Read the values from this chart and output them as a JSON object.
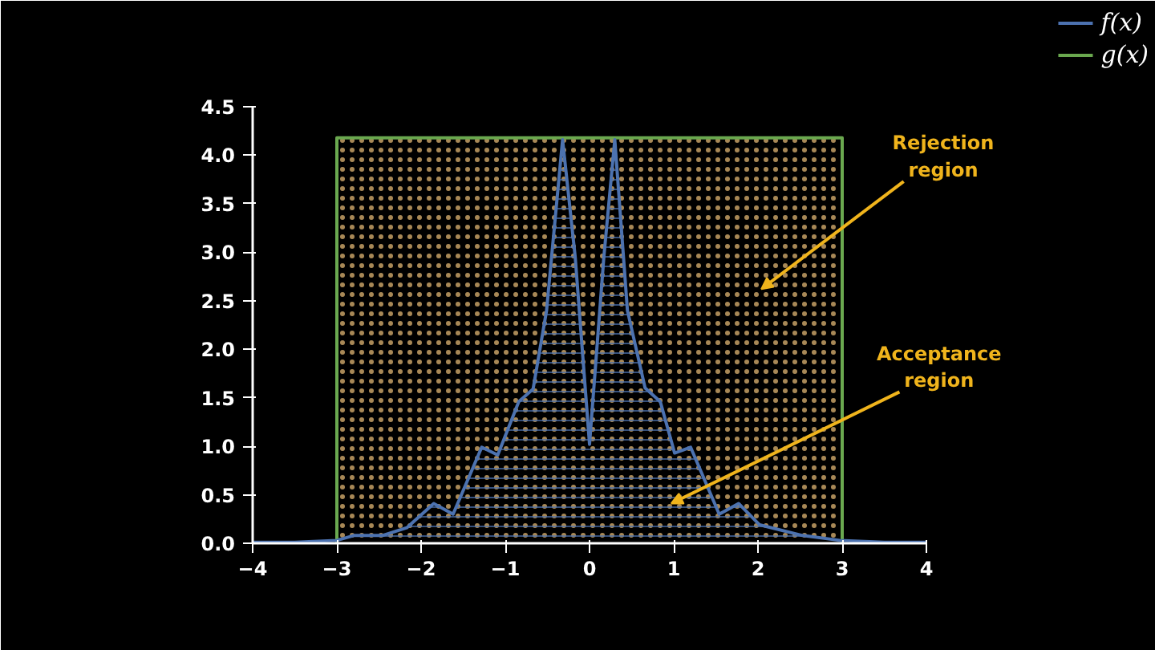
{
  "chart_data": {
    "type": "area",
    "xlim": [
      -4,
      4
    ],
    "ylim": [
      0,
      4.5
    ],
    "xticks": [
      {
        "value": -4,
        "label": "−4"
      },
      {
        "value": -3,
        "label": "−3"
      },
      {
        "value": -2,
        "label": "−2"
      },
      {
        "value": -1,
        "label": "−1"
      },
      0,
      1,
      2,
      3,
      4
    ],
    "yticks": [
      {
        "value": 0,
        "label": "0.0"
      },
      0.5,
      {
        "value": 1,
        "label": "1.0"
      },
      1.5,
      {
        "value": 2,
        "label": "2.0"
      },
      2.5,
      {
        "value": 3,
        "label": "3.0"
      },
      3.5,
      {
        "value": 4,
        "label": "4.0"
      },
      4.5
    ],
    "grid": false,
    "legend": "top right",
    "series": [
      {
        "name": "f(x)",
        "color": "#4c72b0",
        "x": [
          -4,
          -3.5,
          -3,
          -2.8,
          -2.46,
          -2.17,
          -1.85,
          -1.62,
          -1.28,
          -1.09,
          -0.84,
          -0.67,
          -0.51,
          -0.32,
          -0.17,
          0,
          0.17,
          0.3,
          0.45,
          0.66,
          0.84,
          1.01,
          1.2,
          1.54,
          1.77,
          2.02,
          2.53,
          2.97,
          3.5,
          4
        ],
        "values": [
          0.01,
          0.01,
          0.03,
          0.08,
          0.08,
          0.16,
          0.41,
          0.3,
          0.99,
          0.91,
          1.46,
          1.59,
          2.4,
          4.16,
          2.95,
          1.02,
          2.95,
          4.16,
          2.4,
          1.6,
          1.46,
          0.93,
          0.99,
          0.3,
          0.41,
          0.19,
          0.08,
          0.03,
          0.01,
          0.01
        ]
      },
      {
        "name": "g(x)",
        "color": "#6aa84f",
        "x": [
          -3,
          -3,
          3,
          3
        ],
        "values": [
          0,
          4.18,
          4.18,
          0
        ]
      }
    ],
    "annotations": [
      "Rejection\nregion",
      "Acceptance\nregion"
    ]
  }
}
